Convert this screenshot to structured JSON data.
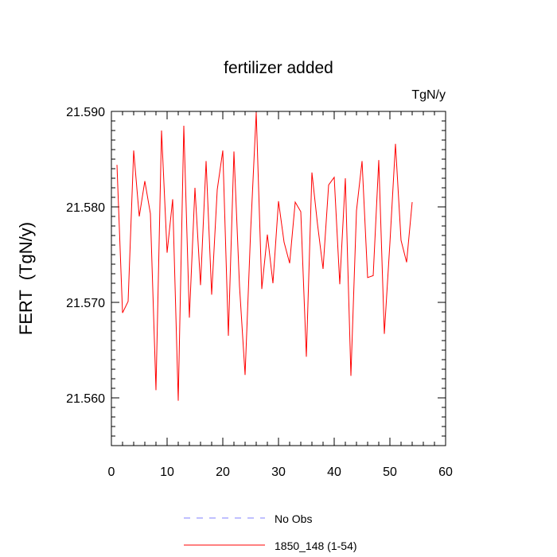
{
  "chart_data": {
    "type": "line",
    "title": "fertilizer added",
    "units_label": "TgN/y",
    "ylabel": "FERT  (TgN/y)",
    "xlabel": "",
    "xlim": [
      0,
      60
    ],
    "ylim": [
      21.555,
      21.59
    ],
    "x_ticks": [
      0,
      10,
      20,
      30,
      40,
      50,
      60
    ],
    "x_tick_labels": [
      "0",
      "10",
      "20",
      "30",
      "40",
      "50",
      "60"
    ],
    "y_ticks": [
      21.56,
      21.57,
      21.58,
      21.59
    ],
    "y_tick_labels": [
      "21.560",
      "21.570",
      "21.580",
      "21.590"
    ],
    "grid": false,
    "legend_position": "bottom",
    "legend": [
      {
        "label": "No Obs",
        "color": "#8080ff",
        "style": "dashed"
      },
      {
        "label": "1850_148 (1-54)",
        "color": "#ff0000",
        "style": "solid"
      }
    ],
    "series": [
      {
        "name": "1850_148 (1-54)",
        "color": "#ff0000",
        "x": [
          1,
          2,
          3,
          4,
          5,
          6,
          7,
          8,
          9,
          10,
          11,
          12,
          13,
          14,
          15,
          16,
          17,
          18,
          19,
          20,
          21,
          22,
          23,
          24,
          25,
          26,
          27,
          28,
          29,
          30,
          31,
          32,
          33,
          34,
          35,
          36,
          37,
          38,
          39,
          40,
          41,
          42,
          43,
          44,
          45,
          46,
          47,
          48,
          49,
          50,
          51,
          52,
          53,
          54
        ],
        "y": [
          21.5844,
          21.5689,
          21.5701,
          21.5859,
          21.579,
          21.5827,
          21.5793,
          21.5608,
          21.588,
          21.5752,
          21.5808,
          21.5597,
          21.5885,
          21.5684,
          21.582,
          21.5718,
          21.5848,
          21.5708,
          21.5818,
          21.5859,
          21.5665,
          21.5858,
          21.5717,
          21.5624,
          21.5775,
          21.5899,
          21.5714,
          21.5771,
          21.572,
          21.5806,
          21.5763,
          21.5741,
          21.5805,
          21.5795,
          21.5643,
          21.5836,
          21.5782,
          21.5735,
          21.5823,
          21.5831,
          21.5719,
          21.583,
          21.5623,
          21.5796,
          21.5848,
          21.5726,
          21.5728,
          21.5849,
          21.5667,
          21.5762,
          21.5866,
          21.5765,
          21.5742,
          21.5805
        ]
      }
    ]
  }
}
